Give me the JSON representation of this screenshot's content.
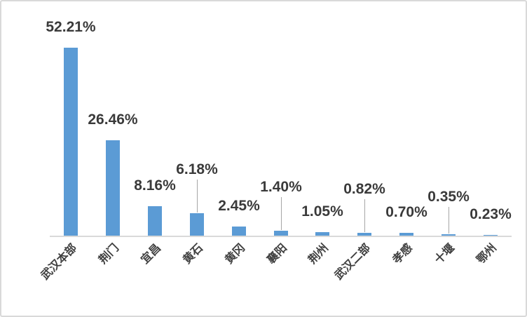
{
  "chart_data": {
    "type": "bar",
    "title": "",
    "xlabel": "",
    "ylabel": "",
    "categories": [
      "武汉本部",
      "荆门",
      "宜昌",
      "黄石",
      "黄冈",
      "襄阳",
      "荆州",
      "武汉二部",
      "孝感",
      "十堰",
      "鄂州"
    ],
    "values": [
      52.21,
      26.46,
      8.16,
      6.18,
      2.45,
      1.4,
      1.05,
      0.82,
      0.7,
      0.35,
      0.23
    ],
    "data_labels": [
      "52.21%",
      "26.46%",
      "8.16%",
      "6.18%",
      "2.45%",
      "1.40%",
      "1.05%",
      "0.82%",
      "0.70%",
      "0.35%",
      "0.23%"
    ],
    "label_has_leader_line": [
      false,
      false,
      false,
      true,
      false,
      true,
      false,
      true,
      false,
      true,
      false
    ],
    "ylim": [
      0,
      55
    ],
    "grid": false,
    "legend": false,
    "x_tick_rotation": 45,
    "colors": {
      "bar": "#5B9BD5",
      "axis_line": "#D9D9D9",
      "leader_line": "#A6A6A6",
      "data_label": "#3A3A3A",
      "category_label": "#404040",
      "background": "#FFFFFF",
      "border": "#D9D9D9"
    }
  }
}
